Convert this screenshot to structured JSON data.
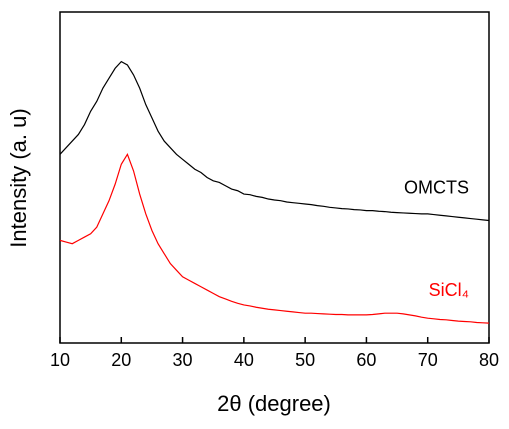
{
  "chart_data": {
    "type": "line",
    "xlabel": "2θ (degree)",
    "ylabel": "Intensity (a. u)",
    "xlim": [
      10,
      80
    ],
    "xticks": [
      10,
      20,
      30,
      40,
      50,
      60,
      70,
      80
    ],
    "ylim": [
      0,
      100
    ],
    "x": [
      10,
      11,
      12,
      13,
      14,
      15,
      16,
      17,
      18,
      19,
      20,
      21,
      22,
      23,
      24,
      25,
      26,
      27,
      28,
      29,
      30,
      31,
      32,
      33,
      34,
      35,
      36,
      37,
      38,
      39,
      40,
      41,
      42,
      43,
      44,
      45,
      46,
      47,
      48,
      49,
      50,
      51,
      52,
      53,
      54,
      55,
      56,
      57,
      58,
      59,
      60,
      61,
      62,
      63,
      64,
      65,
      66,
      67,
      68,
      69,
      70,
      71,
      72,
      73,
      74,
      75,
      76,
      77,
      78,
      79,
      80
    ],
    "series": [
      {
        "name": "OMCTS",
        "color": "#000000",
        "values": [
          57,
          59,
          61,
          63,
          66,
          70,
          73,
          77,
          80,
          83,
          85,
          84,
          81,
          77,
          72,
          68,
          64,
          61,
          59,
          57,
          55.5,
          54,
          52.5,
          51.5,
          50,
          49,
          48.5,
          47.5,
          46.5,
          46,
          45,
          44.8,
          44.3,
          44,
          43.5,
          43.2,
          43,
          42.6,
          42.4,
          42.2,
          42,
          41.8,
          41.5,
          41.3,
          41,
          40.8,
          40.6,
          40.5,
          40.3,
          40.2,
          40,
          40,
          39.8,
          39.7,
          39.5,
          39.4,
          39.3,
          39.2,
          39.1,
          39,
          39,
          38.8,
          38.6,
          38.4,
          38.2,
          38,
          37.8,
          37.6,
          37.4,
          37.2,
          37
        ]
      },
      {
        "name": "SiCl₄",
        "color": "#ff0000",
        "values": [
          31,
          30.5,
          30,
          31,
          32,
          33,
          35,
          39,
          43,
          48,
          54,
          57,
          52,
          45,
          39,
          34,
          30,
          27,
          24,
          22,
          20,
          19,
          18,
          17,
          16,
          15,
          14,
          13.3,
          12.6,
          12,
          11.5,
          11.2,
          10.8,
          10.5,
          10.2,
          10,
          9.8,
          9.6,
          9.4,
          9.2,
          9,
          9,
          8.9,
          8.8,
          8.7,
          8.6,
          8.6,
          8.5,
          8.5,
          8.5,
          8.5,
          8.6,
          8.8,
          9,
          9,
          9,
          8.8,
          8.5,
          8.2,
          7.8,
          7.5,
          7.3,
          7.1,
          7,
          6.8,
          6.6,
          6.5,
          6.4,
          6.2,
          6.1,
          6
        ]
      }
    ]
  }
}
